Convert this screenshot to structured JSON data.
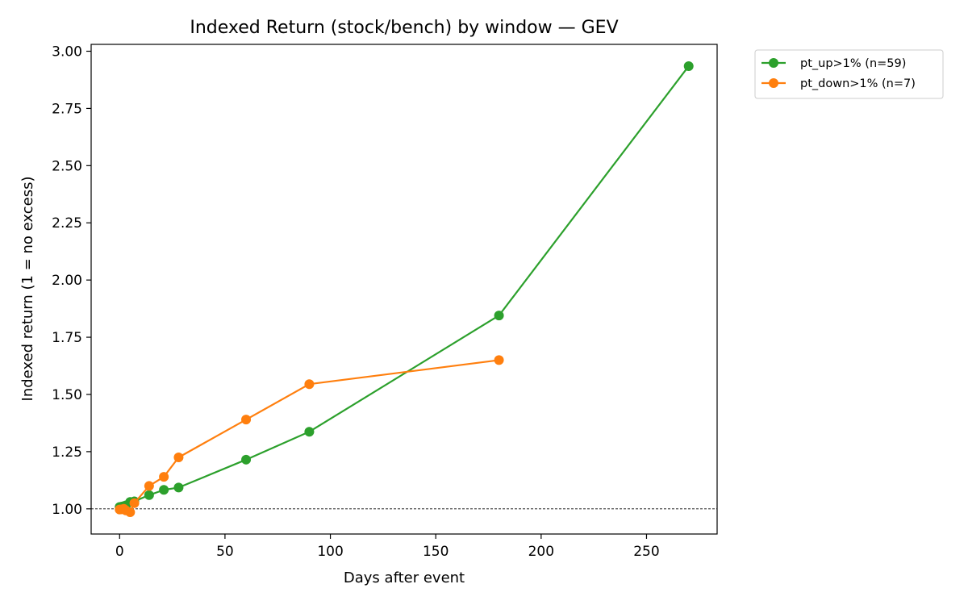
{
  "chart_data": {
    "type": "line",
    "title": "Indexed Return (stock/bench) by window — GEV",
    "xlabel": "Days after event",
    "ylabel": "Indexed return (1 = no excess)",
    "xlim": [
      -13.5,
      283.5
    ],
    "ylim": [
      0.89,
      3.03
    ],
    "xticks": [
      0,
      50,
      100,
      150,
      200,
      250
    ],
    "yticks": [
      1.0,
      1.25,
      1.5,
      1.75,
      2.0,
      2.25,
      2.5,
      2.75,
      3.0
    ],
    "reference_line": {
      "y": 1.0,
      "style": "dashed",
      "color": "#000000"
    },
    "grid": false,
    "legend_position": "outside top-right",
    "series": [
      {
        "name": "pt_up>1% (n=59)",
        "color": "#2ca02c",
        "points": [
          [
            0,
            1.008
          ],
          [
            1,
            1.01
          ],
          [
            2,
            1.012
          ],
          [
            3,
            1.015
          ],
          [
            5,
            1.03
          ],
          [
            7,
            1.033
          ],
          [
            14,
            1.06
          ],
          [
            21,
            1.083
          ],
          [
            28,
            1.093
          ],
          [
            60,
            1.215
          ],
          [
            90,
            1.337
          ],
          [
            180,
            1.845
          ],
          [
            270,
            2.935
          ]
        ]
      },
      {
        "name": "pt_down>1% (n=7)",
        "color": "#ff7f0e",
        "points": [
          [
            0,
            0.997
          ],
          [
            1,
            0.998
          ],
          [
            2,
            1.0
          ],
          [
            3,
            0.993
          ],
          [
            5,
            0.985
          ],
          [
            7,
            1.025
          ],
          [
            14,
            1.1
          ],
          [
            21,
            1.14
          ],
          [
            28,
            1.225
          ],
          [
            60,
            1.39
          ],
          [
            90,
            1.545
          ],
          [
            180,
            1.65
          ]
        ]
      }
    ]
  }
}
